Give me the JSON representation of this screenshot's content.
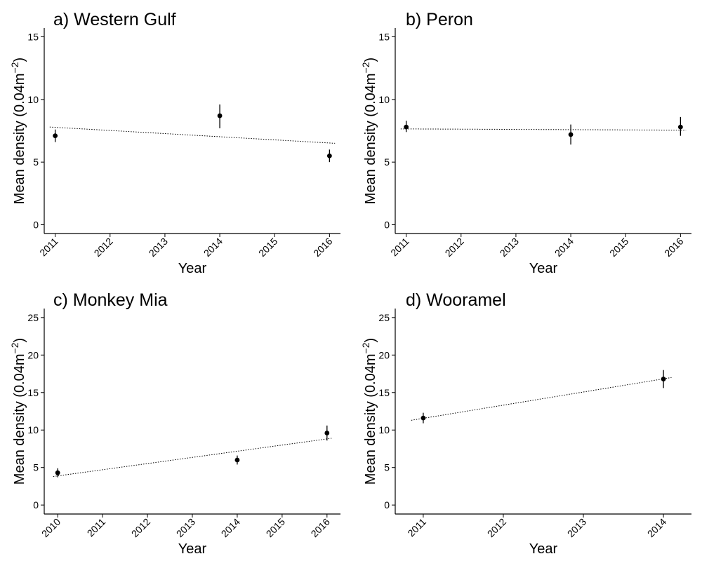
{
  "chart_data": [
    {
      "type": "scatter",
      "title": "a) Western Gulf",
      "xlabel": "Year",
      "ylabel": "Mean density (0.04m",
      "ylabel_sup": "−2",
      "ylabel_close": ")",
      "xticks": [
        2011,
        2012,
        2013,
        2014,
        2015,
        2016
      ],
      "yticks": [
        0,
        5,
        10,
        15
      ],
      "xlim": [
        2010.8,
        2016.2
      ],
      "ylim": [
        -0.7,
        15.7
      ],
      "grid": false,
      "series": [
        {
          "x": [
            2011,
            2014,
            2016
          ],
          "y": [
            7.1,
            8.7,
            5.5
          ],
          "lower": [
            6.6,
            7.7,
            5.0
          ],
          "upper": [
            7.6,
            9.6,
            6.0
          ]
        }
      ],
      "trend_line": {
        "x": [
          2010.9,
          2016.1
        ],
        "y": [
          7.8,
          6.5
        ]
      }
    },
    {
      "type": "scatter",
      "title": "b) Peron",
      "xlabel": "Year",
      "ylabel": "Mean density (0.04m",
      "ylabel_sup": "−2",
      "ylabel_close": ")",
      "xticks": [
        2011,
        2012,
        2013,
        2014,
        2015,
        2016
      ],
      "yticks": [
        0,
        5,
        10,
        15
      ],
      "xlim": [
        2010.8,
        2016.2
      ],
      "ylim": [
        -0.7,
        15.7
      ],
      "grid": false,
      "series": [
        {
          "x": [
            2011,
            2014,
            2016
          ],
          "y": [
            7.8,
            7.2,
            7.8
          ],
          "lower": [
            7.4,
            6.4,
            7.1
          ],
          "upper": [
            8.3,
            8.0,
            8.6
          ]
        }
      ],
      "trend_line": {
        "x": [
          2010.9,
          2016.1
        ],
        "y": [
          7.65,
          7.55
        ]
      }
    },
    {
      "type": "scatter",
      "title": "c) Monkey Mia",
      "xlabel": "Year",
      "ylabel": "Mean density (0.04m",
      "ylabel_sup": "−2",
      "ylabel_close": ")",
      "xticks": [
        2010,
        2011,
        2012,
        2013,
        2014,
        2015,
        2016
      ],
      "yticks": [
        0,
        5,
        10,
        15,
        20,
        25
      ],
      "xlim": [
        2009.7,
        2016.3
      ],
      "ylim": [
        -1.2,
        26.2
      ],
      "grid": false,
      "series": [
        {
          "x": [
            2010,
            2014,
            2016
          ],
          "y": [
            4.3,
            6.0,
            9.6
          ],
          "lower": [
            3.7,
            5.4,
            8.6
          ],
          "upper": [
            4.9,
            6.6,
            10.6
          ]
        }
      ],
      "trend_line": {
        "x": [
          2009.9,
          2016.1
        ],
        "y": [
          3.8,
          8.9
        ]
      }
    },
    {
      "type": "scatter",
      "title": "d) Wooramel",
      "xlabel": "Year",
      "ylabel": "Mean density (0.04m",
      "ylabel_sup": "−2",
      "ylabel_close": ")",
      "xticks": [
        2011,
        2012,
        2013,
        2014
      ],
      "yticks": [
        0,
        5,
        10,
        15,
        20,
        25
      ],
      "xlim": [
        2010.65,
        2014.35
      ],
      "ylim": [
        -1.2,
        26.2
      ],
      "grid": false,
      "series": [
        {
          "x": [
            2011,
            2014
          ],
          "y": [
            11.6,
            16.8
          ],
          "lower": [
            10.9,
            15.6
          ],
          "upper": [
            12.3,
            18.0
          ]
        }
      ],
      "trend_line": {
        "x": [
          2010.85,
          2014.1
        ],
        "y": [
          11.3,
          17.0
        ]
      }
    }
  ]
}
